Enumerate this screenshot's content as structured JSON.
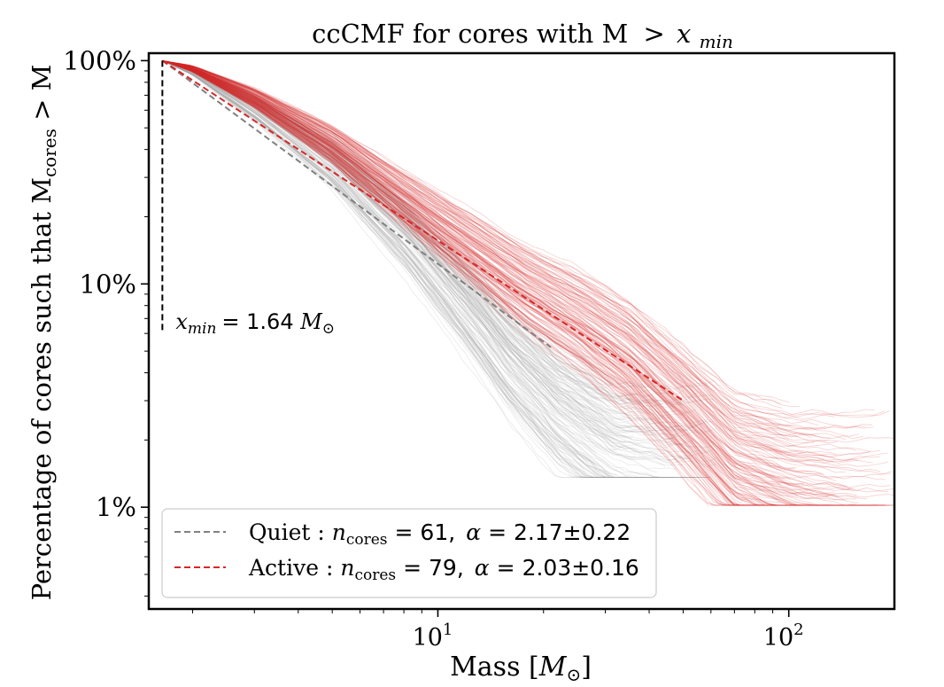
{
  "chart_data": {
    "type": "line",
    "title": "ccCMF for cores with M > x_min",
    "title_parts": {
      "prefix": "ccCMF for cores with M",
      "op": ">",
      "var": "x",
      "sub": "min"
    },
    "xlabel": "Mass [M⊙]",
    "xlabel_parts": {
      "text": "Mass [",
      "var": "M",
      "sub": "⊙",
      "close": "]"
    },
    "ylabel": "Percentage of cores such that M_cores > M",
    "ylabel_parts": {
      "prefix": "Percentage of cores such that M",
      "sub": "cores",
      "suffix": " > M"
    },
    "x_scale": "log",
    "y_scale": "log",
    "xlim": [
      1.5,
      200
    ],
    "ylim": [
      0.0035,
      1.08
    ],
    "x_ticks": [
      {
        "value": 10,
        "base": "10",
        "exp": "1"
      },
      {
        "value": 100,
        "base": "10",
        "exp": "2"
      }
    ],
    "y_ticks": [
      {
        "value": 1.0,
        "label": "100%"
      },
      {
        "value": 0.1,
        "label": "10%"
      },
      {
        "value": 0.01,
        "label": "1%"
      }
    ],
    "xmin_line": {
      "x": 1.64,
      "y_range": [
        0.06,
        1.0
      ],
      "label_var": "x",
      "label_sub": "min",
      "label_eq": "= 1.64",
      "label_unit": "M",
      "label_unit_sub": "⊙"
    },
    "series": [
      {
        "name": "Quiet",
        "color": "#808080",
        "style": "dashed",
        "n_cores": "61",
        "alpha": "2.17±0.22",
        "fit": [
          [
            1.64,
            1.0
          ],
          [
            21.0,
            0.052
          ]
        ]
      },
      {
        "name": "Active",
        "color": "#d62728",
        "style": "dashed",
        "n_cores": "79",
        "alpha": "2.03±0.16",
        "fit": [
          [
            1.64,
            1.0
          ],
          [
            50.0,
            0.03
          ]
        ]
      }
    ],
    "bootstrap_bands": [
      {
        "series": "Quiet",
        "color": "#9e9e9e",
        "curve": [
          [
            1.64,
            1.0
          ],
          [
            2.0,
            0.9
          ],
          [
            3.0,
            0.62
          ],
          [
            5.0,
            0.35
          ],
          [
            8.0,
            0.17
          ],
          [
            12.0,
            0.08
          ],
          [
            16.0,
            0.045
          ],
          [
            22.0,
            0.027
          ],
          [
            32.0,
            0.018
          ],
          [
            45.0,
            0.016
          ]
        ]
      },
      {
        "series": "Active",
        "color": "#d62728",
        "curve": [
          [
            1.64,
            1.0
          ],
          [
            2.0,
            0.92
          ],
          [
            3.0,
            0.68
          ],
          [
            5.0,
            0.42
          ],
          [
            8.0,
            0.24
          ],
          [
            12.0,
            0.15
          ],
          [
            18.0,
            0.095
          ],
          [
            25.0,
            0.07
          ],
          [
            35.0,
            0.048
          ],
          [
            50.0,
            0.028
          ],
          [
            70.0,
            0.016
          ],
          [
            100.0,
            0.013
          ],
          [
            150.0,
            0.012
          ]
        ]
      }
    ],
    "legend": {
      "placement": "lower-left",
      "entries": [
        {
          "series": "Quiet",
          "label": "Quiet",
          "n_label": "n",
          "n_sub": "cores",
          "eq": "= 61,",
          "alpha_symbol": "α",
          "alpha_value": "= 2.17±0.22"
        },
        {
          "series": "Active",
          "label": "Active",
          "n_label": "n",
          "n_sub": "cores",
          "eq": "= 79,",
          "alpha_symbol": "α",
          "alpha_value": "= 2.03±0.16"
        }
      ]
    },
    "grid": false
  }
}
